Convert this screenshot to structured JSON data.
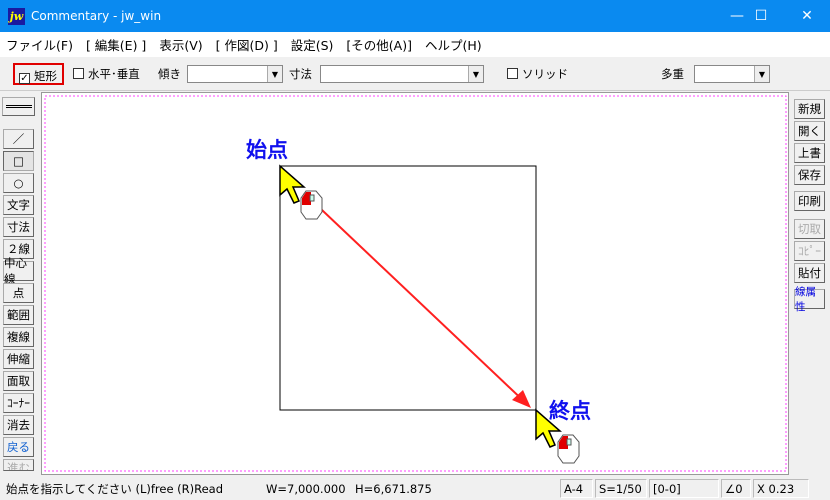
{
  "window": {
    "title": "Commentary - jw_win",
    "logo": "jw"
  },
  "menu": [
    "ファイル(F)",
    "[ 編集(E) ]",
    "表示(V)",
    "[ 作図(D) ]",
    "設定(S)",
    "[その他(A)]",
    "ヘルプ(H)"
  ],
  "toolbar": {
    "rect_label": "矩形",
    "rect_checked": true,
    "hv_label": "水平･垂直",
    "hv_checked": false,
    "tilt_label": "傾き",
    "tilt_value": "",
    "dim_label": "寸法",
    "dim_value": "",
    "solid_label": "ソリッド",
    "solid_checked": false,
    "multi_label": "多重",
    "multi_value": ""
  },
  "left_tools": [
    "／",
    "□",
    "○",
    "文字",
    "寸法",
    "２線",
    "中心線",
    "点",
    "範囲",
    "複線",
    "伸縮",
    "面取",
    "ｺｰﾅｰ",
    "消去",
    "戻る",
    "進む"
  ],
  "right_tools": [
    "新規",
    "開く",
    "上書",
    "保存",
    "印刷",
    "切取",
    "ｺﾋﾟｰ",
    "貼付",
    "線属性"
  ],
  "canvas": {
    "start_label": "始点",
    "end_label": "終点"
  },
  "status": {
    "message": "始点を指示してください (L)free (R)Read",
    "width": "W=7,000.000",
    "height": "H=6,671.875",
    "paper": "A-4",
    "scale": "S=1/50",
    "layer": "[0-0]",
    "angle": "∠0",
    "zoom": "X 0.23"
  },
  "colors": {
    "titlebar": "#0a8af0",
    "annotation": "#1010ee",
    "guide_line": "#ff2020",
    "highlight": "#e00000"
  }
}
